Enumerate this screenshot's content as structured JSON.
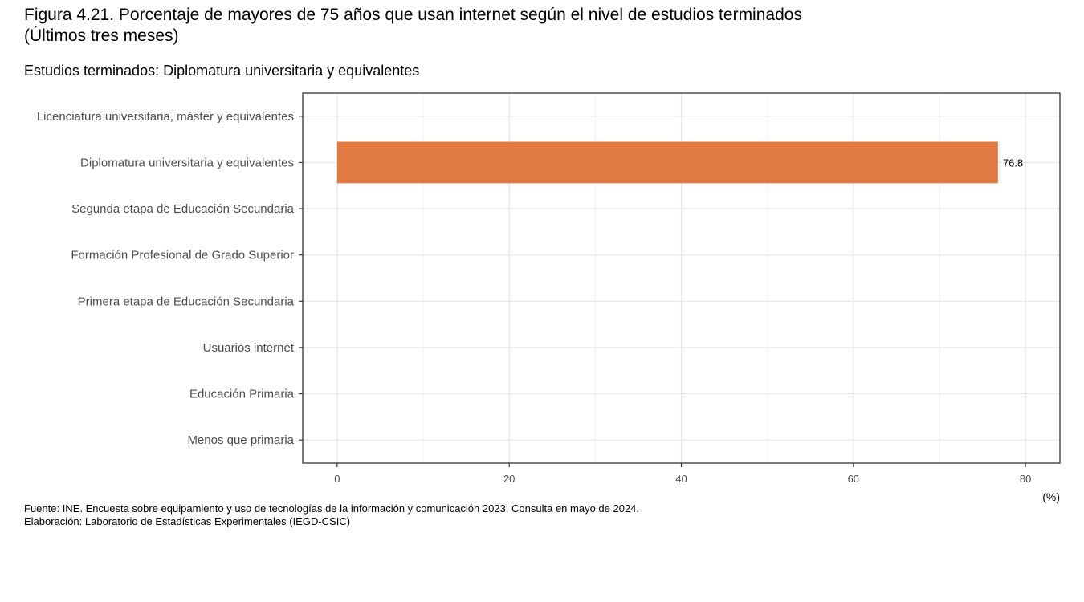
{
  "title_lines": [
    "Figura 4.21. Porcentaje de mayores de 75 años que usan internet según el nivel de estudios terminados",
    "(Últimos tres meses)"
  ],
  "subtitle": "Estudios terminados: Diplomatura universitaria y equivalentes",
  "footnote": {
    "source": "Fuente: INE. Encuesta sobre equipamiento y uso de tecnologías de la información y comunicación 2023. Consulta en mayo de 2024.",
    "elaboration": "Elaboración: Laboratorio de Estadísticas Experimentales (IEGD-CSIC)"
  },
  "chart_data": {
    "type": "bar",
    "orientation": "horizontal",
    "categories": [
      "Licenciatura universitaria, máster y equivalentes",
      "Diplomatura universitaria y equivalentes",
      "Segunda etapa de Educación Secundaria",
      "Formación Profesional de Grado Superior",
      "Primera etapa de Educación Secundaria",
      "Usuarios internet",
      "Educación Primaria",
      "Menos que primaria"
    ],
    "values": [
      null,
      76.8,
      null,
      null,
      null,
      null,
      null,
      null
    ],
    "data_labels": [
      "",
      "76.8",
      "",
      "",
      "",
      "",
      "",
      ""
    ],
    "xlabel": "(%)",
    "xlim": [
      -4,
      84
    ],
    "xticks": [
      0,
      20,
      40,
      60,
      80
    ],
    "bar_color": "#E27B43",
    "grid": true
  }
}
